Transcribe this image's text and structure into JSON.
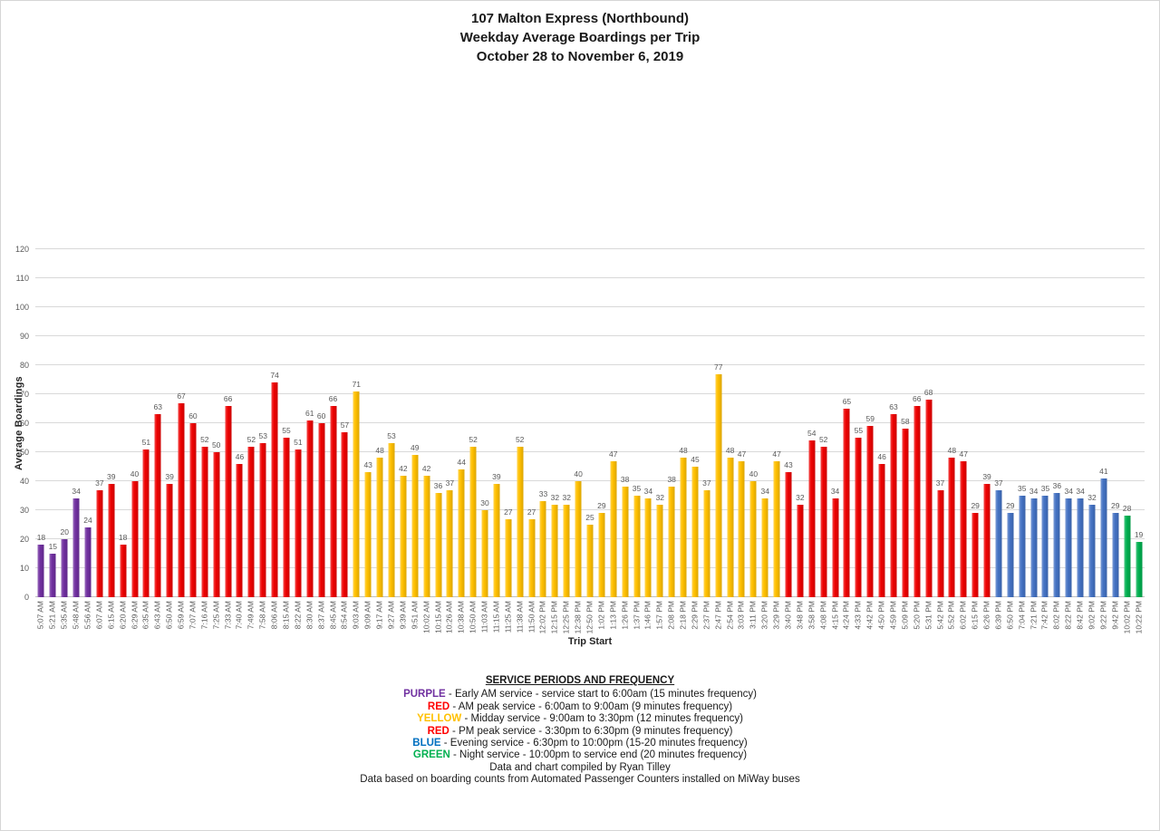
{
  "title": {
    "line1": "107 Malton Express (Northbound)",
    "line2": "Weekday Average Boardings per Trip",
    "line3": "October 28 to November 6, 2019"
  },
  "colors": {
    "early_am": "#7030A0",
    "am_peak": "#EE0202",
    "midday": "#FFC000",
    "pm_peak": "#EE0202",
    "evening": "#4472C4",
    "night": "#00B050"
  },
  "chart_data": {
    "type": "bar",
    "title": "107 Malton Express (Northbound) Weekday Average Boardings per Trip, October 28 to November 6, 2019",
    "xlabel": "Trip Start",
    "ylabel": "Average Boardings",
    "ylim": [
      0,
      120
    ],
    "ytick_step": 10,
    "grid": true,
    "value_labels": true,
    "points": [
      {
        "t": "5:07 AM",
        "v": 18,
        "p": "early_am"
      },
      {
        "t": "5:21 AM",
        "v": 15,
        "p": "early_am"
      },
      {
        "t": "5:35 AM",
        "v": 20,
        "p": "early_am"
      },
      {
        "t": "5:48 AM",
        "v": 34,
        "p": "early_am"
      },
      {
        "t": "5:56 AM",
        "v": 24,
        "p": "early_am"
      },
      {
        "t": "6:07 AM",
        "v": 37,
        "p": "am_peak"
      },
      {
        "t": "6:15 AM",
        "v": 39,
        "p": "am_peak"
      },
      {
        "t": "6:20 AM",
        "v": 18,
        "p": "am_peak"
      },
      {
        "t": "6:29 AM",
        "v": 40,
        "p": "am_peak"
      },
      {
        "t": "6:35 AM",
        "v": 51,
        "p": "am_peak"
      },
      {
        "t": "6:43 AM",
        "v": 63,
        "p": "am_peak"
      },
      {
        "t": "6:50 AM",
        "v": 39,
        "p": "am_peak"
      },
      {
        "t": "6:59 AM",
        "v": 67,
        "p": "am_peak"
      },
      {
        "t": "7:07 AM",
        "v": 60,
        "p": "am_peak"
      },
      {
        "t": "7:16 AM",
        "v": 52,
        "p": "am_peak"
      },
      {
        "t": "7:25 AM",
        "v": 50,
        "p": "am_peak"
      },
      {
        "t": "7:33 AM",
        "v": 66,
        "p": "am_peak"
      },
      {
        "t": "7:40 AM",
        "v": 46,
        "p": "am_peak"
      },
      {
        "t": "7:49 AM",
        "v": 52,
        "p": "am_peak"
      },
      {
        "t": "7:58 AM",
        "v": 53,
        "p": "am_peak"
      },
      {
        "t": "8:06 AM",
        "v": 74,
        "p": "am_peak"
      },
      {
        "t": "8:15 AM",
        "v": 55,
        "p": "am_peak"
      },
      {
        "t": "8:22 AM",
        "v": 51,
        "p": "am_peak"
      },
      {
        "t": "8:30 AM",
        "v": 61,
        "p": "am_peak"
      },
      {
        "t": "8:37 AM",
        "v": 60,
        "p": "am_peak"
      },
      {
        "t": "8:45 AM",
        "v": 66,
        "p": "am_peak"
      },
      {
        "t": "8:54 AM",
        "v": 57,
        "p": "am_peak"
      },
      {
        "t": "9:03 AM",
        "v": 71,
        "p": "midday"
      },
      {
        "t": "9:09 AM",
        "v": 43,
        "p": "midday"
      },
      {
        "t": "9:17 AM",
        "v": 48,
        "p": "midday"
      },
      {
        "t": "9:27 AM",
        "v": 53,
        "p": "midday"
      },
      {
        "t": "9:39 AM",
        "v": 42,
        "p": "midday"
      },
      {
        "t": "9:51 AM",
        "v": 49,
        "p": "midday"
      },
      {
        "t": "10:02 AM",
        "v": 42,
        "p": "midday"
      },
      {
        "t": "10:15 AM",
        "v": 36,
        "p": "midday"
      },
      {
        "t": "10:26 AM",
        "v": 37,
        "p": "midday"
      },
      {
        "t": "10:38 AM",
        "v": 44,
        "p": "midday"
      },
      {
        "t": "10:50 AM",
        "v": 52,
        "p": "midday"
      },
      {
        "t": "11:03 AM",
        "v": 30,
        "p": "midday"
      },
      {
        "t": "11:15 AM",
        "v": 39,
        "p": "midday"
      },
      {
        "t": "11:25 AM",
        "v": 27,
        "p": "midday"
      },
      {
        "t": "11:38 AM",
        "v": 52,
        "p": "midday"
      },
      {
        "t": "11:50 AM",
        "v": 27,
        "p": "midday"
      },
      {
        "t": "12:02 PM",
        "v": 33,
        "p": "midday"
      },
      {
        "t": "12:15 PM",
        "v": 32,
        "p": "midday"
      },
      {
        "t": "12:25 PM",
        "v": 32,
        "p": "midday"
      },
      {
        "t": "12:38 PM",
        "v": 40,
        "p": "midday"
      },
      {
        "t": "12:50 PM",
        "v": 25,
        "p": "midday"
      },
      {
        "t": "1:02 PM",
        "v": 29,
        "p": "midday"
      },
      {
        "t": "1:13 PM",
        "v": 47,
        "p": "midday"
      },
      {
        "t": "1:26 PM",
        "v": 38,
        "p": "midday"
      },
      {
        "t": "1:37 PM",
        "v": 35,
        "p": "midday"
      },
      {
        "t": "1:46 PM",
        "v": 34,
        "p": "midday"
      },
      {
        "t": "1:57 PM",
        "v": 32,
        "p": "midday"
      },
      {
        "t": "2:08 PM",
        "v": 38,
        "p": "midday"
      },
      {
        "t": "2:18 PM",
        "v": 48,
        "p": "midday"
      },
      {
        "t": "2:29 PM",
        "v": 45,
        "p": "midday"
      },
      {
        "t": "2:37 PM",
        "v": 37,
        "p": "midday"
      },
      {
        "t": "2:47 PM",
        "v": 77,
        "p": "midday"
      },
      {
        "t": "2:54 PM",
        "v": 48,
        "p": "midday"
      },
      {
        "t": "3:03 PM",
        "v": 47,
        "p": "midday"
      },
      {
        "t": "3:11 PM",
        "v": 40,
        "p": "midday"
      },
      {
        "t": "3:20 PM",
        "v": 34,
        "p": "midday"
      },
      {
        "t": "3:29 PM",
        "v": 47,
        "p": "midday"
      },
      {
        "t": "3:40 PM",
        "v": 43,
        "p": "pm_peak"
      },
      {
        "t": "3:48 PM",
        "v": 32,
        "p": "pm_peak"
      },
      {
        "t": "3:58 PM",
        "v": 54,
        "p": "pm_peak"
      },
      {
        "t": "4:08 PM",
        "v": 52,
        "p": "pm_peak"
      },
      {
        "t": "4:15 PM",
        "v": 34,
        "p": "pm_peak"
      },
      {
        "t": "4:24 PM",
        "v": 65,
        "p": "pm_peak"
      },
      {
        "t": "4:33 PM",
        "v": 55,
        "p": "pm_peak"
      },
      {
        "t": "4:42 PM",
        "v": 59,
        "p": "pm_peak"
      },
      {
        "t": "4:50 PM",
        "v": 46,
        "p": "pm_peak"
      },
      {
        "t": "4:59 PM",
        "v": 63,
        "p": "pm_peak"
      },
      {
        "t": "5:09 PM",
        "v": 58,
        "p": "pm_peak"
      },
      {
        "t": "5:20 PM",
        "v": 66,
        "p": "pm_peak"
      },
      {
        "t": "5:31 PM",
        "v": 68,
        "p": "pm_peak"
      },
      {
        "t": "5:42 PM",
        "v": 37,
        "p": "pm_peak"
      },
      {
        "t": "5:52 PM",
        "v": 48,
        "p": "pm_peak"
      },
      {
        "t": "6:02 PM",
        "v": 47,
        "p": "pm_peak"
      },
      {
        "t": "6:15 PM",
        "v": 29,
        "p": "pm_peak"
      },
      {
        "t": "6:26 PM",
        "v": 39,
        "p": "pm_peak"
      },
      {
        "t": "6:39 PM",
        "v": 37,
        "p": "evening"
      },
      {
        "t": "6:50 PM",
        "v": 29,
        "p": "evening"
      },
      {
        "t": "7:04 PM",
        "v": 35,
        "p": "evening"
      },
      {
        "t": "7:21 PM",
        "v": 34,
        "p": "evening"
      },
      {
        "t": "7:42 PM",
        "v": 35,
        "p": "evening"
      },
      {
        "t": "8:02 PM",
        "v": 36,
        "p": "evening"
      },
      {
        "t": "8:22 PM",
        "v": 34,
        "p": "evening"
      },
      {
        "t": "8:42 PM",
        "v": 34,
        "p": "evening"
      },
      {
        "t": "9:02 PM",
        "v": 32,
        "p": "evening"
      },
      {
        "t": "9:22 PM",
        "v": 41,
        "p": "evening"
      },
      {
        "t": "9:42 PM",
        "v": 29,
        "p": "evening"
      },
      {
        "t": "10:02 PM",
        "v": 28,
        "p": "night"
      },
      {
        "t": "10:22 PM",
        "v": 19,
        "p": "night"
      }
    ]
  },
  "legend": {
    "title": "SERVICE PERIODS AND FREQUENCY",
    "entries": [
      {
        "keyword": "PURPLE",
        "color": "#7030A0",
        "description": "- Early AM service - service start to 6:00am (15 minutes frequency)"
      },
      {
        "keyword": "RED",
        "color": "#FF0000",
        "description": "- AM peak service - 6:00am to 9:00am (9 minutes frequency)"
      },
      {
        "keyword": "YELLOW",
        "color": "#FFC000",
        "description": "- Midday service - 9:00am to 3:30pm (12 minutes frequency)"
      },
      {
        "keyword": "RED",
        "color": "#FF0000",
        "description": "- PM peak service - 3:30pm to 6:30pm (9 minutes frequency)"
      },
      {
        "keyword": "BLUE",
        "color": "#0070C0",
        "description": "- Evening service - 6:30pm to 10:00pm (15-20 minutes frequency)"
      },
      {
        "keyword": "GREEN",
        "color": "#00B050",
        "description": "- Night service - 10:00pm to service end (20 minutes frequency)"
      }
    ],
    "credit1": "Data and chart compiled by Ryan Tilley",
    "credit2": "Data based on boarding counts from Automated Passenger Counters installed on MiWay buses"
  }
}
